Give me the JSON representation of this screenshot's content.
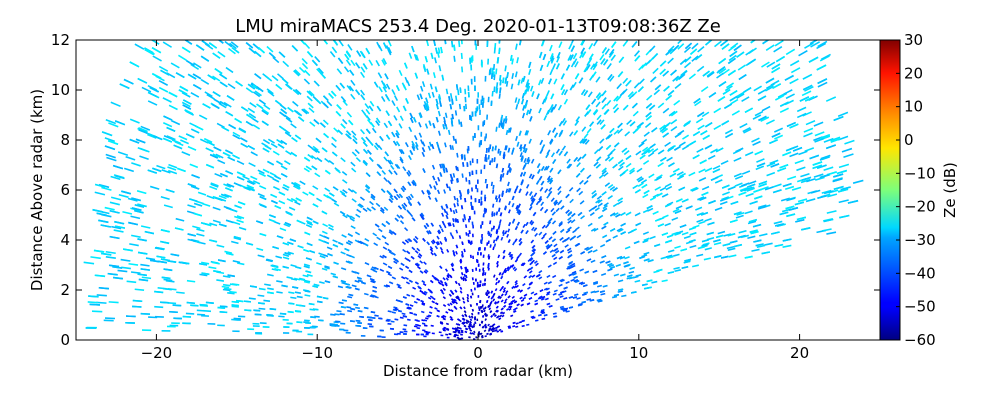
{
  "chart_data": {
    "type": "heatmap",
    "title": "LMU miraMACS 253.4 Deg. 2020-01-13T09:08:36Z  Ze",
    "xlabel": "Distance from radar (km)",
    "ylabel": "Distance Above radar  (km)",
    "xlim": [
      -25,
      25
    ],
    "ylim": [
      0,
      12
    ],
    "x_ticks": [
      -20,
      -10,
      0,
      10,
      20
    ],
    "x_tick_labels": [
      "−20",
      "−10",
      "0",
      "10",
      "20"
    ],
    "y_ticks": [
      0,
      2,
      4,
      6,
      8,
      10,
      12
    ],
    "y_tick_labels": [
      "0",
      "2",
      "4",
      "6",
      "8",
      "10",
      "12"
    ],
    "colorbar": {
      "label": "Ze (dB)",
      "range": [
        -60,
        30
      ],
      "ticks": [
        -60,
        -50,
        -40,
        -30,
        -20,
        -10,
        0,
        10,
        20,
        30
      ],
      "tick_labels": [
        "−60",
        "−50",
        "−40",
        "−30",
        "−20",
        "−10",
        "0",
        "10",
        "20",
        "30"
      ],
      "colormap": "jet"
    },
    "scan": {
      "max_range_km": 24.5,
      "left_edge_elevation_deg": 1.0,
      "right_edge_elevation_deg": 11.0,
      "ze_near_radar_db": -55,
      "ze_far_range_db": -30
    },
    "grid": false,
    "legend": "none"
  }
}
